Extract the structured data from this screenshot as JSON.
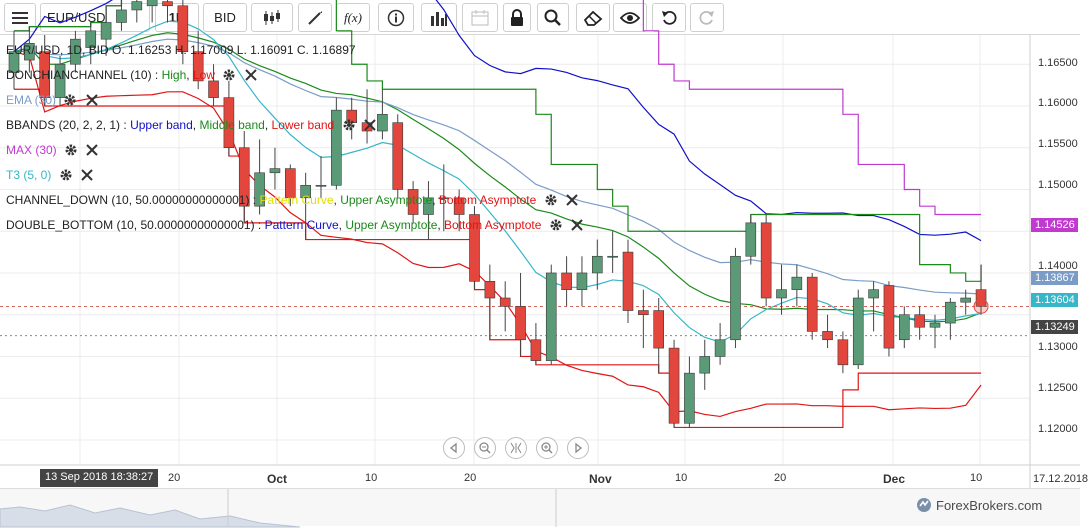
{
  "toolbar": {
    "menu_icon": "hamburger-menu-icon",
    "symbol": "EUR/USD",
    "timeframe": "1D",
    "price_side": "BID",
    "fx_label": "f(x)"
  },
  "legend": {
    "ohlc": "EUR/USD, 1D, BID    O. 1.16253 H. 1.17009 L. 1.16091 C. 1.16897",
    "donchian": {
      "name": "DONCHIANCHANNEL (10)",
      "high": "High",
      "low": "Low",
      "sep": " : ",
      "comma": ", "
    },
    "ema": {
      "name": "EMA (30)"
    },
    "bbands": {
      "name": "BBANDS (20, 2, 2, 1)",
      "sep": " : ",
      "upper": "Upper band",
      "middle": "Middle band",
      "lower": "Lower band"
    },
    "max": {
      "name": "MAX (30)"
    },
    "t3": {
      "name": "T3 (5, 0)"
    },
    "channel_down": {
      "name": "CHANNEL_DOWN (10, 50.00000000000001)",
      "sep": " : ",
      "pattern": "Pattern Curve",
      "upper": "Upper Asymptote",
      "bottom": "Bottom Asymptote"
    },
    "double_bottom": {
      "name": "DOUBLE_BOTTOM (10, 50.00000000000001)",
      "sep": " : ",
      "pattern": "Pattern Curve",
      "upper": "Upper Asymptote",
      "bottom": "Bottom Asymptote"
    }
  },
  "price_axis": {
    "ticks": [
      "1.16500",
      "1.16000",
      "1.15500",
      "1.15000",
      "1.14000",
      "1.13000",
      "1.12500",
      "1.12000"
    ],
    "badge_max": "1.14526",
    "badge_ema": "1.13867",
    "badge_current": "1.13604",
    "badge_low": "1.13249"
  },
  "time_axis": {
    "crosshair": "13 Sep 2018 18:38:27",
    "ticks": [
      "20",
      "Oct",
      "10",
      "20",
      "Nov",
      "10",
      "20",
      "Dec",
      "10"
    ],
    "end_date": "17.12.2018"
  },
  "watermark": "ForexBrokers.com",
  "colors": {
    "bull": "#5a9a77",
    "bear": "#e2463c",
    "donchian_high": "#1a8a1a",
    "donchian_low": "#e01515",
    "ema": "#7a9cc6",
    "bb_upper": "#1010c8",
    "bb_middle": "#1a8a1a",
    "bb_lower": "#e01515",
    "max": "#c03ad0",
    "t3": "#36b6c8",
    "pattern_curve": "#e8e800"
  },
  "chart_data": {
    "type": "candlestick",
    "symbol": "EUR/USD",
    "timeframe": "1D",
    "ylim": [
      1.117,
      1.1685
    ],
    "candles": [
      {
        "o": 1.164,
        "h": 1.169,
        "l": 1.162,
        "c": 1.1665
      },
      {
        "o": 1.1655,
        "h": 1.1695,
        "l": 1.164,
        "c": 1.1675
      },
      {
        "o": 1.1665,
        "h": 1.1685,
        "l": 1.16,
        "c": 1.161
      },
      {
        "o": 1.161,
        "h": 1.166,
        "l": 1.16,
        "c": 1.165
      },
      {
        "o": 1.165,
        "h": 1.169,
        "l": 1.164,
        "c": 1.168
      },
      {
        "o": 1.167,
        "h": 1.17,
        "l": 1.165,
        "c": 1.169
      },
      {
        "o": 1.168,
        "h": 1.172,
        "l": 1.166,
        "c": 1.17
      },
      {
        "o": 1.17,
        "h": 1.173,
        "l": 1.169,
        "c": 1.1715
      },
      {
        "o": 1.1715,
        "h": 1.174,
        "l": 1.17,
        "c": 1.1725
      },
      {
        "o": 1.172,
        "h": 1.1745,
        "l": 1.17,
        "c": 1.1735
      },
      {
        "o": 1.1725,
        "h": 1.176,
        "l": 1.17,
        "c": 1.172
      },
      {
        "o": 1.172,
        "h": 1.174,
        "l": 1.165,
        "c": 1.1665
      },
      {
        "o": 1.1665,
        "h": 1.169,
        "l": 1.162,
        "c": 1.163
      },
      {
        "o": 1.163,
        "h": 1.165,
        "l": 1.16,
        "c": 1.161
      },
      {
        "o": 1.161,
        "h": 1.163,
        "l": 1.154,
        "c": 1.155
      },
      {
        "o": 1.155,
        "h": 1.157,
        "l": 1.146,
        "c": 1.148
      },
      {
        "o": 1.148,
        "h": 1.156,
        "l": 1.147,
        "c": 1.152
      },
      {
        "o": 1.152,
        "h": 1.155,
        "l": 1.15,
        "c": 1.1525
      },
      {
        "o": 1.1525,
        "h": 1.153,
        "l": 1.148,
        "c": 1.149
      },
      {
        "o": 1.149,
        "h": 1.152,
        "l": 1.144,
        "c": 1.1505
      },
      {
        "o": 1.1505,
        "h": 1.154,
        "l": 1.149,
        "c": 1.1505
      },
      {
        "o": 1.1505,
        "h": 1.161,
        "l": 1.15,
        "c": 1.1595
      },
      {
        "o": 1.1595,
        "h": 1.161,
        "l": 1.156,
        "c": 1.158
      },
      {
        "o": 1.158,
        "h": 1.162,
        "l": 1.1555,
        "c": 1.157
      },
      {
        "o": 1.157,
        "h": 1.162,
        "l": 1.156,
        "c": 1.159
      },
      {
        "o": 1.158,
        "h": 1.159,
        "l": 1.149,
        "c": 1.15
      },
      {
        "o": 1.15,
        "h": 1.151,
        "l": 1.146,
        "c": 1.147
      },
      {
        "o": 1.147,
        "h": 1.151,
        "l": 1.144,
        "c": 1.149
      },
      {
        "o": 1.149,
        "h": 1.153,
        "l": 1.145,
        "c": 1.149
      },
      {
        "o": 1.149,
        "h": 1.15,
        "l": 1.145,
        "c": 1.147
      },
      {
        "o": 1.147,
        "h": 1.148,
        "l": 1.138,
        "c": 1.139
      },
      {
        "o": 1.139,
        "h": 1.141,
        "l": 1.132,
        "c": 1.137
      },
      {
        "o": 1.137,
        "h": 1.139,
        "l": 1.133,
        "c": 1.136
      },
      {
        "o": 1.136,
        "h": 1.14,
        "l": 1.13,
        "c": 1.132
      },
      {
        "o": 1.132,
        "h": 1.134,
        "l": 1.129,
        "c": 1.1295
      },
      {
        "o": 1.1295,
        "h": 1.141,
        "l": 1.129,
        "c": 1.14
      },
      {
        "o": 1.14,
        "h": 1.142,
        "l": 1.136,
        "c": 1.138
      },
      {
        "o": 1.138,
        "h": 1.142,
        "l": 1.136,
        "c": 1.14
      },
      {
        "o": 1.14,
        "h": 1.144,
        "l": 1.138,
        "c": 1.142
      },
      {
        "o": 1.142,
        "h": 1.145,
        "l": 1.14,
        "c": 1.142
      },
      {
        "o": 1.1425,
        "h": 1.144,
        "l": 1.134,
        "c": 1.1355
      },
      {
        "o": 1.1355,
        "h": 1.138,
        "l": 1.131,
        "c": 1.135
      },
      {
        "o": 1.1355,
        "h": 1.137,
        "l": 1.128,
        "c": 1.131
      },
      {
        "o": 1.131,
        "h": 1.132,
        "l": 1.1215,
        "c": 1.122
      },
      {
        "o": 1.122,
        "h": 1.13,
        "l": 1.1215,
        "c": 1.128
      },
      {
        "o": 1.128,
        "h": 1.132,
        "l": 1.126,
        "c": 1.13
      },
      {
        "o": 1.13,
        "h": 1.134,
        "l": 1.129,
        "c": 1.132
      },
      {
        "o": 1.132,
        "h": 1.143,
        "l": 1.131,
        "c": 1.142
      },
      {
        "o": 1.142,
        "h": 1.147,
        "l": 1.141,
        "c": 1.146
      },
      {
        "o": 1.146,
        "h": 1.147,
        "l": 1.136,
        "c": 1.137
      },
      {
        "o": 1.137,
        "h": 1.141,
        "l": 1.135,
        "c": 1.138
      },
      {
        "o": 1.138,
        "h": 1.141,
        "l": 1.136,
        "c": 1.1395
      },
      {
        "o": 1.1395,
        "h": 1.14,
        "l": 1.132,
        "c": 1.133
      },
      {
        "o": 1.133,
        "h": 1.135,
        "l": 1.131,
        "c": 1.132
      },
      {
        "o": 1.132,
        "h": 1.133,
        "l": 1.128,
        "c": 1.129
      },
      {
        "o": 1.129,
        "h": 1.138,
        "l": 1.1285,
        "c": 1.137
      },
      {
        "o": 1.137,
        "h": 1.139,
        "l": 1.133,
        "c": 1.138
      },
      {
        "o": 1.1385,
        "h": 1.139,
        "l": 1.13,
        "c": 1.131
      },
      {
        "o": 1.132,
        "h": 1.136,
        "l": 1.131,
        "c": 1.135
      },
      {
        "o": 1.135,
        "h": 1.136,
        "l": 1.132,
        "c": 1.1335
      },
      {
        "o": 1.1335,
        "h": 1.135,
        "l": 1.131,
        "c": 1.134
      },
      {
        "o": 1.134,
        "h": 1.137,
        "l": 1.132,
        "c": 1.1365
      },
      {
        "o": 1.1365,
        "h": 1.138,
        "l": 1.135,
        "c": 1.137
      },
      {
        "o": 1.138,
        "h": 1.141,
        "l": 1.135,
        "c": 1.136
      }
    ]
  }
}
